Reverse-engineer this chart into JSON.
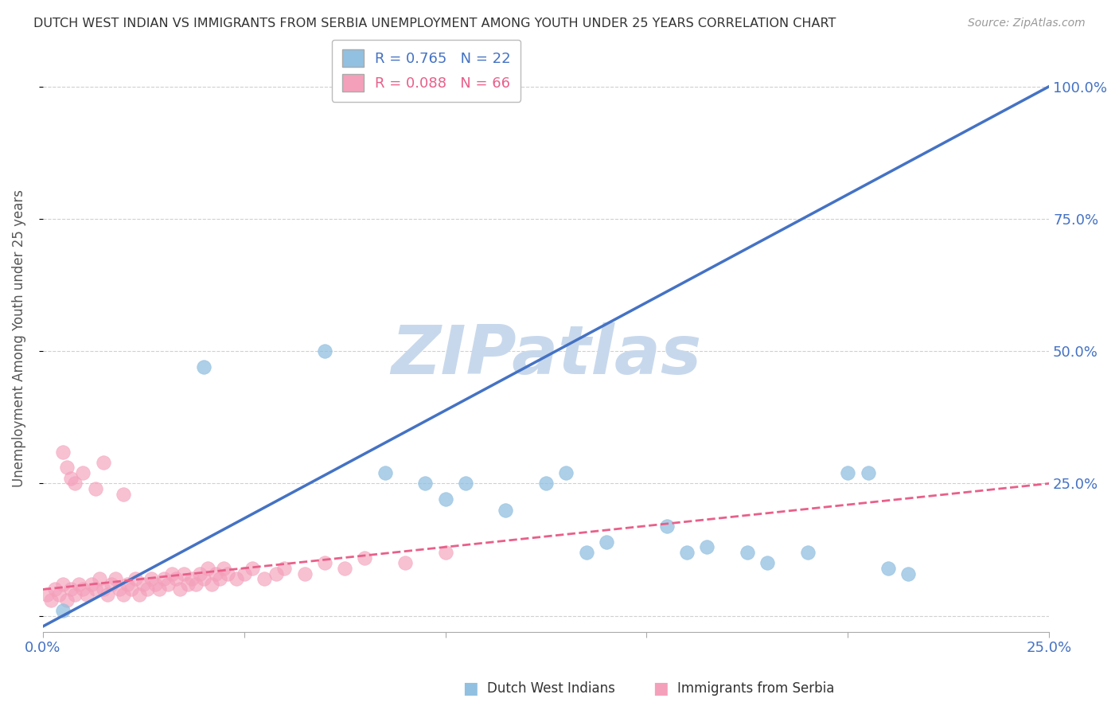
{
  "title": "DUTCH WEST INDIAN VS IMMIGRANTS FROM SERBIA UNEMPLOYMENT AMONG YOUTH UNDER 25 YEARS CORRELATION CHART",
  "source": "Source: ZipAtlas.com",
  "ylabel": "Unemployment Among Youth under 25 years",
  "xlim": [
    0.0,
    0.25
  ],
  "ylim": [
    -0.03,
    1.08
  ],
  "xticks": [
    0.0,
    0.05,
    0.1,
    0.15,
    0.2,
    0.25
  ],
  "xtick_labels": [
    "0.0%",
    "",
    "",
    "",
    "",
    "25.0%"
  ],
  "ytick_labels_right": [
    "",
    "25.0%",
    "50.0%",
    "75.0%",
    "100.0%"
  ],
  "yticks_right": [
    0.0,
    0.25,
    0.5,
    0.75,
    1.0
  ],
  "blue_color": "#92C0E0",
  "pink_color": "#F4A0BB",
  "blue_line_color": "#4472C4",
  "pink_line_color": "#E8608A",
  "watermark_text": "ZIPatlas",
  "watermark_color": "#C8D8EC",
  "R_blue": 0.765,
  "N_blue": 22,
  "R_pink": 0.088,
  "N_pink": 66,
  "blue_x": [
    0.005,
    0.04,
    0.07,
    0.085,
    0.095,
    0.1,
    0.105,
    0.115,
    0.125,
    0.13,
    0.135,
    0.14,
    0.155,
    0.16,
    0.165,
    0.175,
    0.18,
    0.19,
    0.2,
    0.205,
    0.21,
    0.215
  ],
  "blue_y": [
    0.01,
    0.47,
    0.5,
    0.27,
    0.25,
    0.22,
    0.25,
    0.2,
    0.25,
    0.27,
    0.12,
    0.14,
    0.17,
    0.12,
    0.13,
    0.12,
    0.1,
    0.12,
    0.27,
    0.27,
    0.09,
    0.08
  ],
  "pink_x": [
    0.001,
    0.002,
    0.003,
    0.004,
    0.005,
    0.005,
    0.006,
    0.006,
    0.007,
    0.007,
    0.008,
    0.008,
    0.009,
    0.01,
    0.01,
    0.011,
    0.012,
    0.013,
    0.013,
    0.014,
    0.015,
    0.015,
    0.016,
    0.017,
    0.018,
    0.019,
    0.02,
    0.02,
    0.021,
    0.022,
    0.023,
    0.024,
    0.025,
    0.026,
    0.027,
    0.028,
    0.029,
    0.03,
    0.031,
    0.032,
    0.033,
    0.034,
    0.035,
    0.036,
    0.037,
    0.038,
    0.039,
    0.04,
    0.041,
    0.042,
    0.043,
    0.044,
    0.045,
    0.046,
    0.048,
    0.05,
    0.052,
    0.055,
    0.058,
    0.06,
    0.065,
    0.07,
    0.075,
    0.08,
    0.09,
    0.1
  ],
  "pink_y": [
    0.04,
    0.03,
    0.05,
    0.04,
    0.06,
    0.31,
    0.03,
    0.28,
    0.05,
    0.26,
    0.04,
    0.25,
    0.06,
    0.05,
    0.27,
    0.04,
    0.06,
    0.05,
    0.24,
    0.07,
    0.05,
    0.29,
    0.04,
    0.06,
    0.07,
    0.05,
    0.04,
    0.23,
    0.06,
    0.05,
    0.07,
    0.04,
    0.06,
    0.05,
    0.07,
    0.06,
    0.05,
    0.07,
    0.06,
    0.08,
    0.07,
    0.05,
    0.08,
    0.06,
    0.07,
    0.06,
    0.08,
    0.07,
    0.09,
    0.06,
    0.08,
    0.07,
    0.09,
    0.08,
    0.07,
    0.08,
    0.09,
    0.07,
    0.08,
    0.09,
    0.08,
    0.1,
    0.09,
    0.11,
    0.1,
    0.12
  ]
}
